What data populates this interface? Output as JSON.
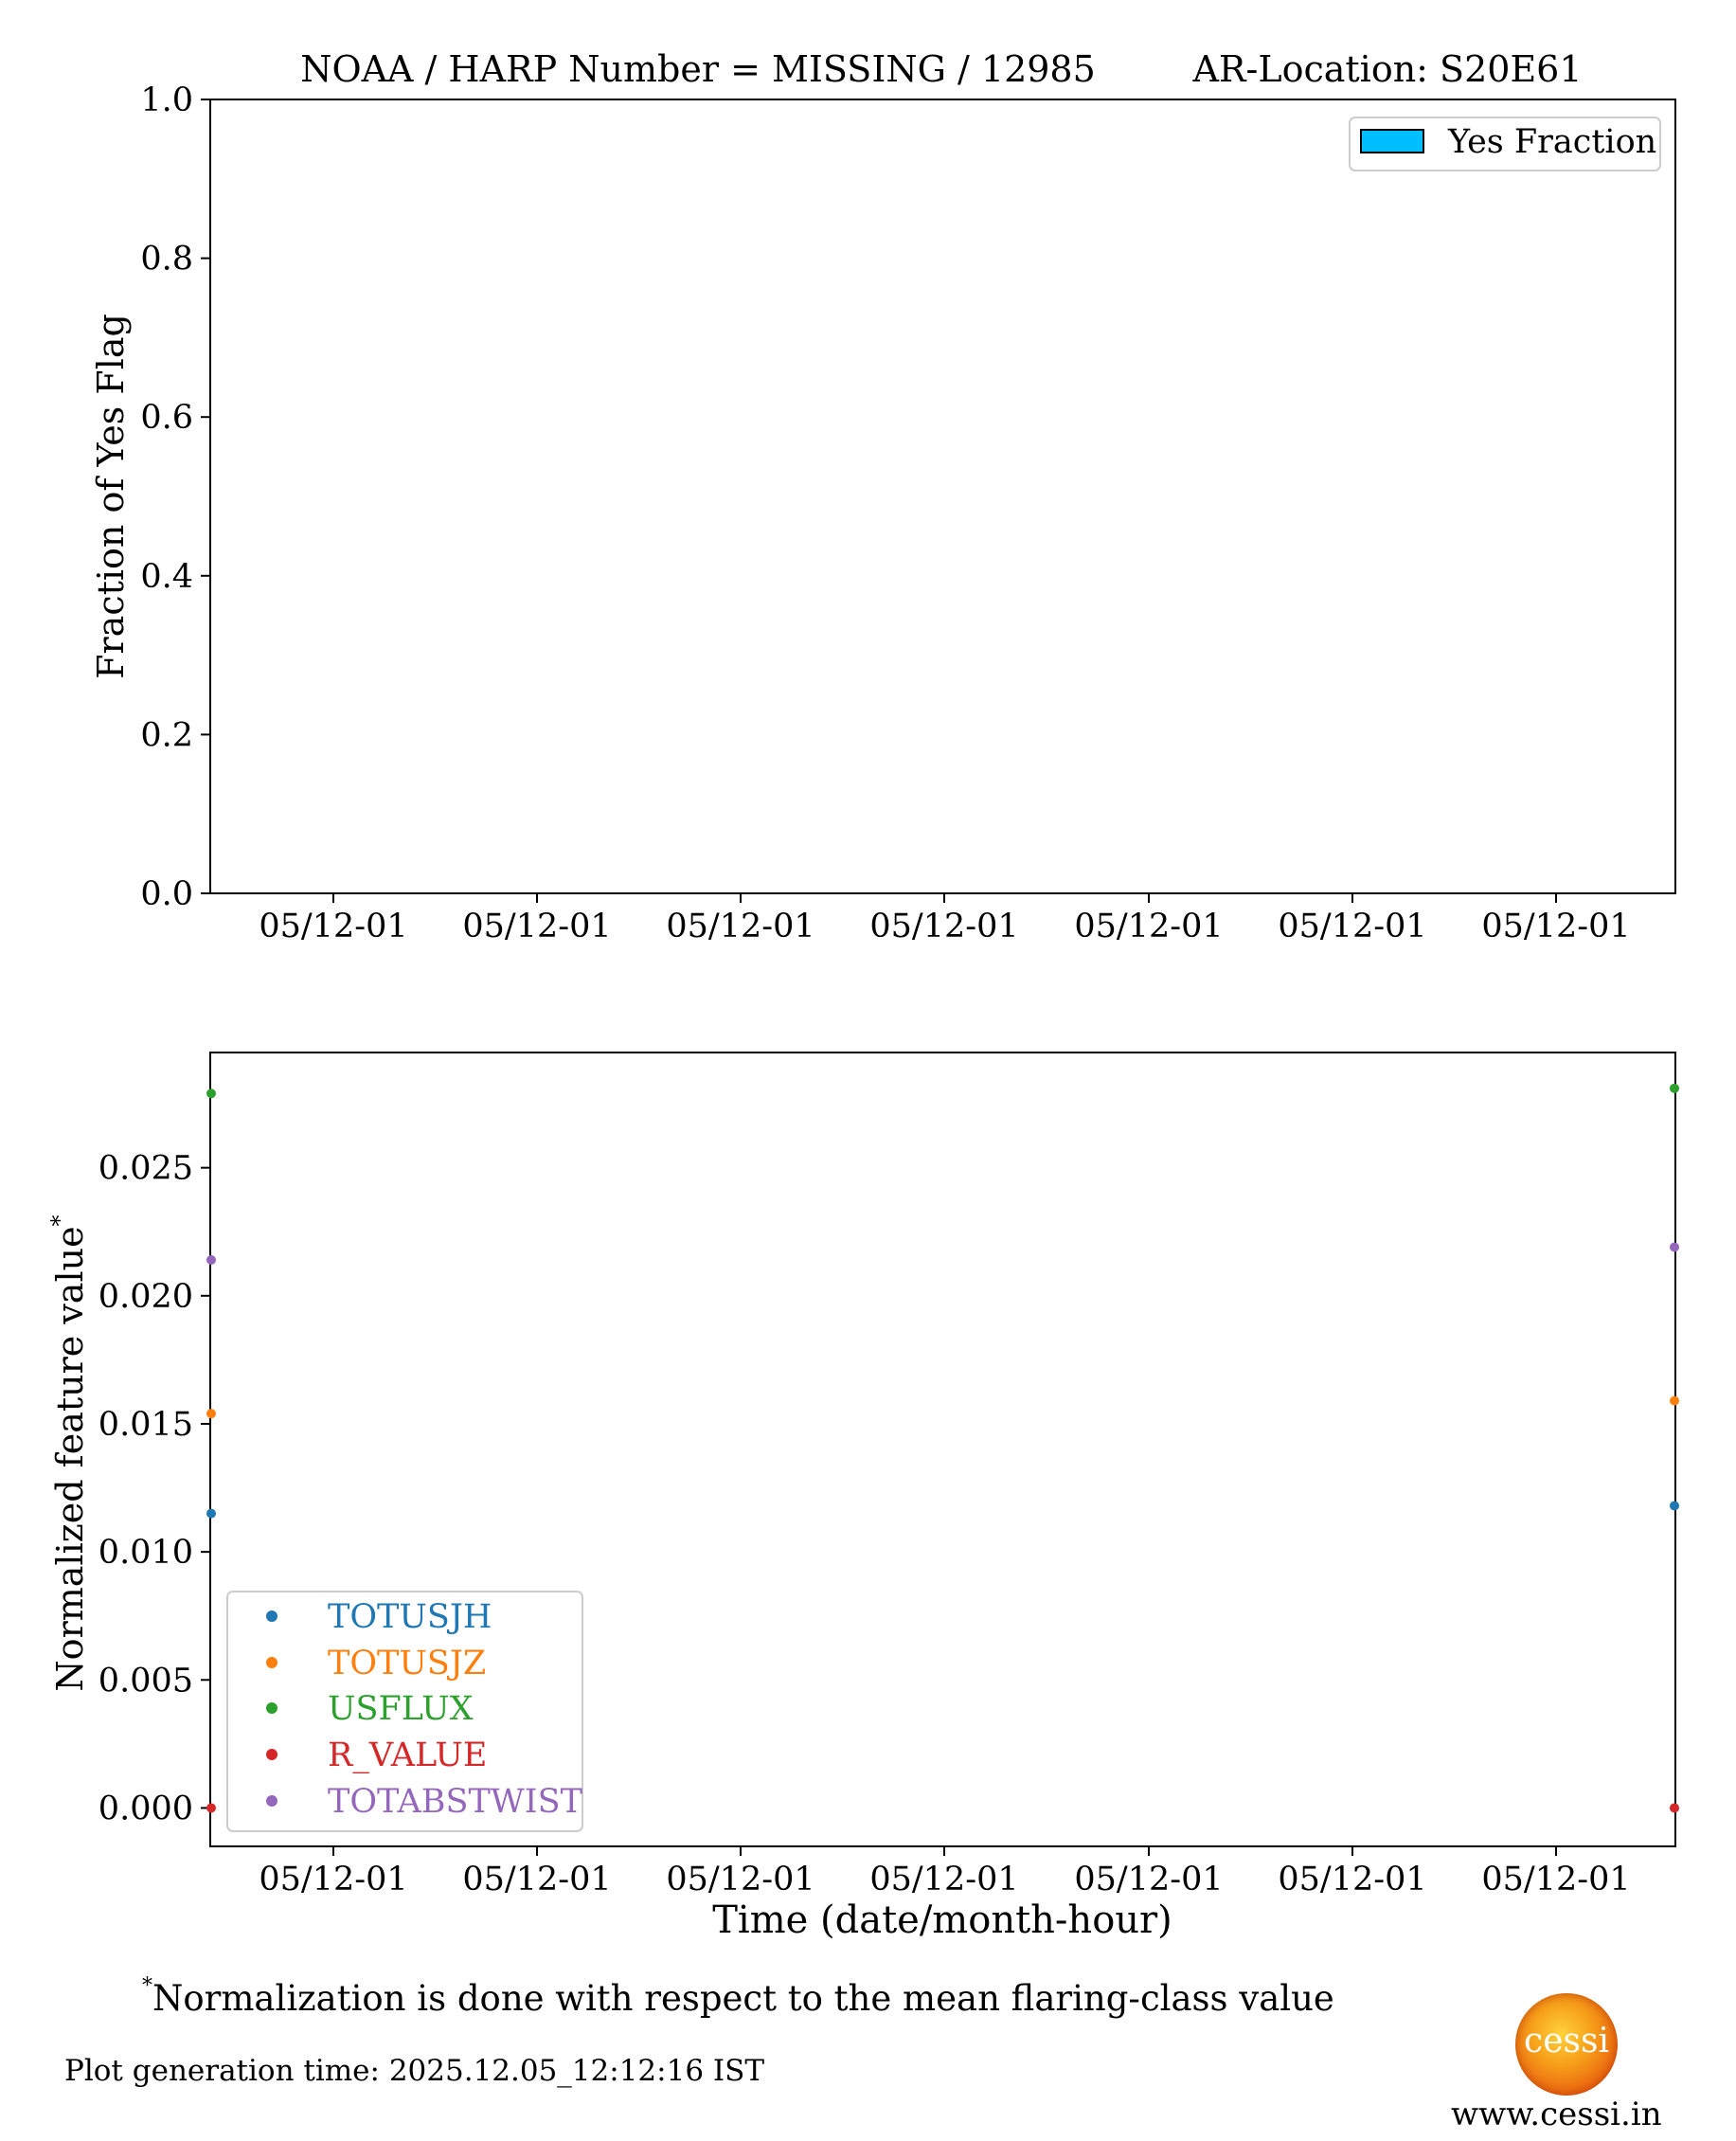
{
  "chart_data": [
    {
      "type": "bar",
      "title": "NOAA / HARP Number = MISSING / 12985",
      "title_right": "AR-Location: S20E61",
      "xlabel": "",
      "ylabel": "Fraction of Yes Flag",
      "ylim": [
        0.0,
        1.0
      ],
      "yticks": [
        "0.0",
        "0.2",
        "0.4",
        "0.6",
        "0.8",
        "1.0"
      ],
      "xticks": [
        "05/12-01",
        "05/12-01",
        "05/12-01",
        "05/12-01",
        "05/12-01",
        "05/12-01",
        "05/12-01"
      ],
      "legend_position": "top-right",
      "series": [
        {
          "name": "Yes Fraction",
          "color": "#00bfff",
          "values": []
        }
      ],
      "grid": false
    },
    {
      "type": "scatter",
      "xlabel": "Time (date/month-hour)",
      "ylabel": "Normalized feature value",
      "ylabel_superscript": "*",
      "ylim": [
        -0.0015,
        0.0295
      ],
      "yticks": [
        "0.000",
        "0.005",
        "0.010",
        "0.015",
        "0.020",
        "0.025"
      ],
      "xticks": [
        "05/12-01",
        "05/12-01",
        "05/12-01",
        "05/12-01",
        "05/12-01",
        "05/12-01",
        "05/12-01"
      ],
      "legend_position": "lower-left",
      "grid": false,
      "series": [
        {
          "name": "TOTUSJH",
          "color": "#1f77b4",
          "points": [
            {
              "x": "start",
              "y": 0.0115
            },
            {
              "x": "end",
              "y": 0.0118
            }
          ]
        },
        {
          "name": "TOTUSJZ",
          "color": "#ff7f0e",
          "points": [
            {
              "x": "start",
              "y": 0.0154
            },
            {
              "x": "end",
              "y": 0.0159
            }
          ]
        },
        {
          "name": "USFLUX",
          "color": "#2ca02c",
          "points": [
            {
              "x": "start",
              "y": 0.0279
            },
            {
              "x": "end",
              "y": 0.0281
            }
          ]
        },
        {
          "name": "R_VALUE",
          "color": "#d62728",
          "points": [
            {
              "x": "start",
              "y": 0.0
            },
            {
              "x": "end",
              "y": 0.0
            }
          ]
        },
        {
          "name": "TOTABSTWIST",
          "color": "#9467bd",
          "points": [
            {
              "x": "start",
              "y": 0.0214
            },
            {
              "x": "end",
              "y": 0.0219
            }
          ]
        }
      ]
    }
  ],
  "footnote": {
    "marker": "*",
    "text": "Normalization is done with respect to the mean flaring-class value"
  },
  "generation_time": "Plot generation time: 2025.12.05_12:12:16 IST",
  "logo": {
    "text": "cessi",
    "site": "www.cessi.in"
  }
}
